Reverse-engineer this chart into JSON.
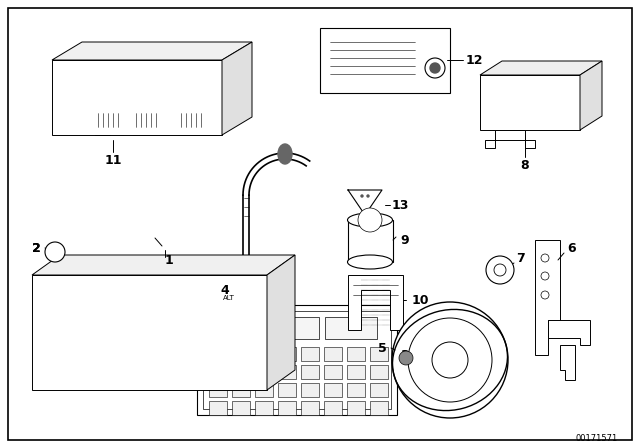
{
  "bg_color": "#ffffff",
  "line_color": "#000000",
  "figsize": [
    6.4,
    4.48
  ],
  "dpi": 100,
  "watermark": "00171571",
  "lw": 0.7
}
